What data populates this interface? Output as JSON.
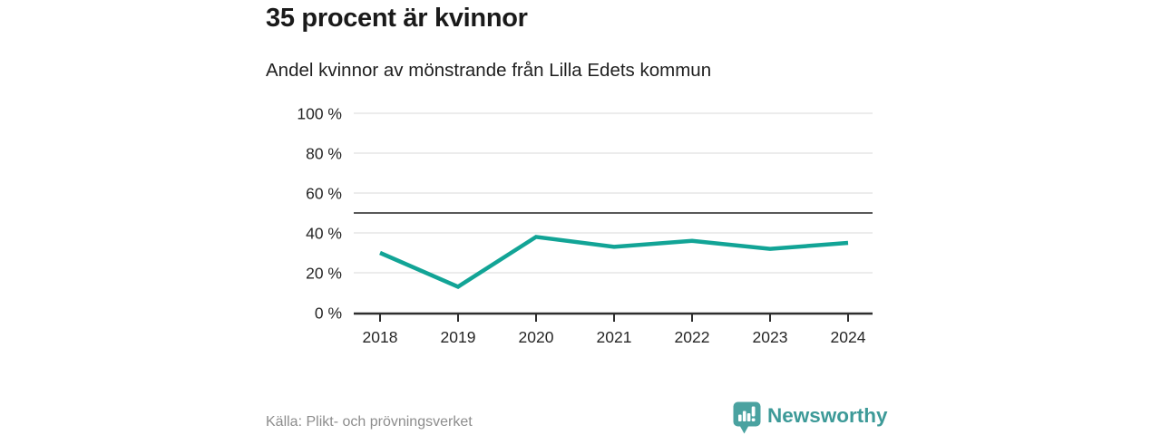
{
  "header": {
    "title": "35 procent är kvinnor",
    "subtitle": "Andel kvinnor av mönstrande från Lilla Edets kommun"
  },
  "chart_data": {
    "type": "line",
    "title": "35 procent är kvinnor",
    "subtitle": "Andel kvinnor av mönstrande från Lilla Edets kommun",
    "categories": [
      "2018",
      "2019",
      "2020",
      "2021",
      "2022",
      "2023",
      "2024"
    ],
    "series": [
      {
        "name": "Andel kvinnor av mönstrande",
        "values": [
          30,
          13,
          38,
          33,
          36,
          32,
          35
        ]
      }
    ],
    "xlabel": "",
    "ylabel": "",
    "ylim": [
      0,
      100
    ],
    "yticks": [
      0,
      20,
      40,
      60,
      80,
      100
    ],
    "ytick_suffix": " %",
    "reference_line": 50,
    "grid": "horizontal",
    "legend": "none"
  },
  "footer": {
    "source": "Källa: Plikt- och prövningsverket",
    "brand": "Newsworthy"
  },
  "colors": {
    "accent": "#12a496",
    "brand_text": "#3d9a98",
    "brand_icon": "#4aa2a0",
    "title_text": "#1a1a1a",
    "muted_text": "#8d8d8d",
    "gridline": "#e0e0e0",
    "axis": "#2e2e2e",
    "tick_label": "#262626",
    "reference_line": "#595959"
  }
}
